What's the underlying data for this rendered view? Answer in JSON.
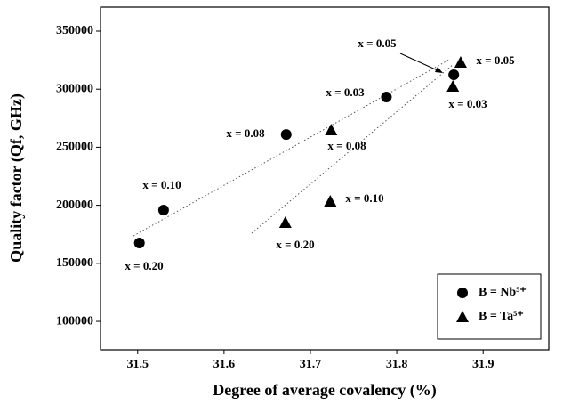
{
  "chart_data": {
    "type": "scatter",
    "x_label": "Degree of average covalency (%)",
    "y_label": "Quality factor (Qf, GHz)",
    "xlim": [
      31.457,
      31.976
    ],
    "ylim": [
      75500,
      370700
    ],
    "xticks": [
      31.5,
      31.6,
      31.7,
      31.8,
      31.9
    ],
    "yticks": [
      100000,
      150000,
      200000,
      250000,
      300000,
      350000
    ],
    "legend": "lower right",
    "series": [
      {
        "name": "B = Nb⁵⁺",
        "color": "#000000",
        "marker": "circle",
        "x": [
          31.502,
          31.53,
          31.672,
          31.788,
          31.866
        ],
        "values": [
          167500,
          195900,
          261000,
          293300,
          312400
        ]
      },
      {
        "name": "B = Ta⁵⁺",
        "color": "#000000",
        "marker": "triangle",
        "x": [
          31.671,
          31.723,
          31.724,
          31.865,
          31.874
        ],
        "values": [
          185100,
          203500,
          264900,
          302500,
          323200
        ]
      }
    ],
    "annotations": [
      "x = 0.20",
      "x = 0.10",
      "x = 0.08",
      "x = 0.03",
      "x = 0.05",
      "x = 0.20",
      "x = 0.10",
      "x = 0.08",
      "x = 0.03",
      "x = 0.05"
    ]
  }
}
